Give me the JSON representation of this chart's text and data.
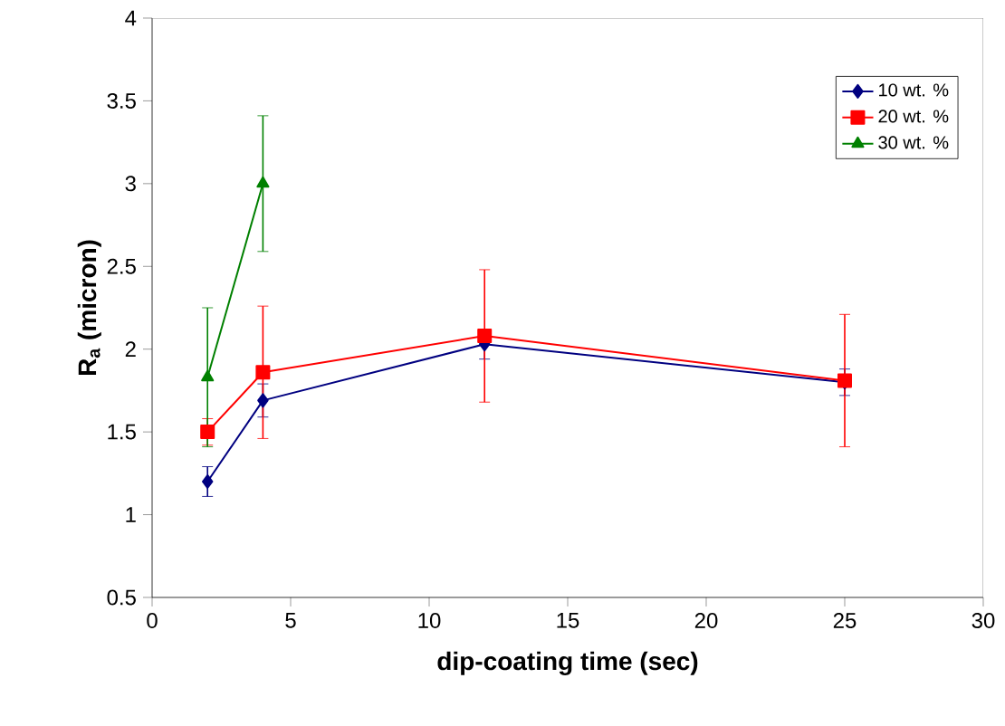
{
  "chart_data": {
    "type": "line",
    "xlabel": "dip-coating time (sec)",
    "ylabel": "R$_{a}$ (micron)",
    "xlim": [
      0,
      30
    ],
    "xticks": [
      0,
      5,
      10,
      15,
      20,
      25,
      30
    ],
    "ylim": [
      0.5,
      4
    ],
    "yticks": [
      0.5,
      1,
      1.5,
      2,
      2.5,
      3,
      3.5,
      4
    ],
    "grid": false,
    "legend": "top right",
    "series": [
      {
        "name": "10 wt. %",
        "color": "#000080",
        "marker": "diamond",
        "x": [
          2,
          4,
          12,
          25
        ],
        "values": [
          1.2,
          1.69,
          2.03,
          1.8
        ],
        "errors": [
          0.09,
          0.1,
          0.09,
          0.08
        ]
      },
      {
        "name": "20 wt. %",
        "color": "#ff0000",
        "marker": "square",
        "x": [
          2,
          4,
          12,
          25
        ],
        "values": [
          1.5,
          1.86,
          2.08,
          1.81
        ],
        "errors": [
          0.08,
          0.4,
          0.4,
          0.4
        ]
      },
      {
        "name": "30 wt. %",
        "color": "#008000",
        "marker": "triangle",
        "x": [
          2,
          4
        ],
        "values": [
          1.83,
          3.0
        ],
        "errors": [
          0.42,
          0.41
        ]
      }
    ]
  }
}
